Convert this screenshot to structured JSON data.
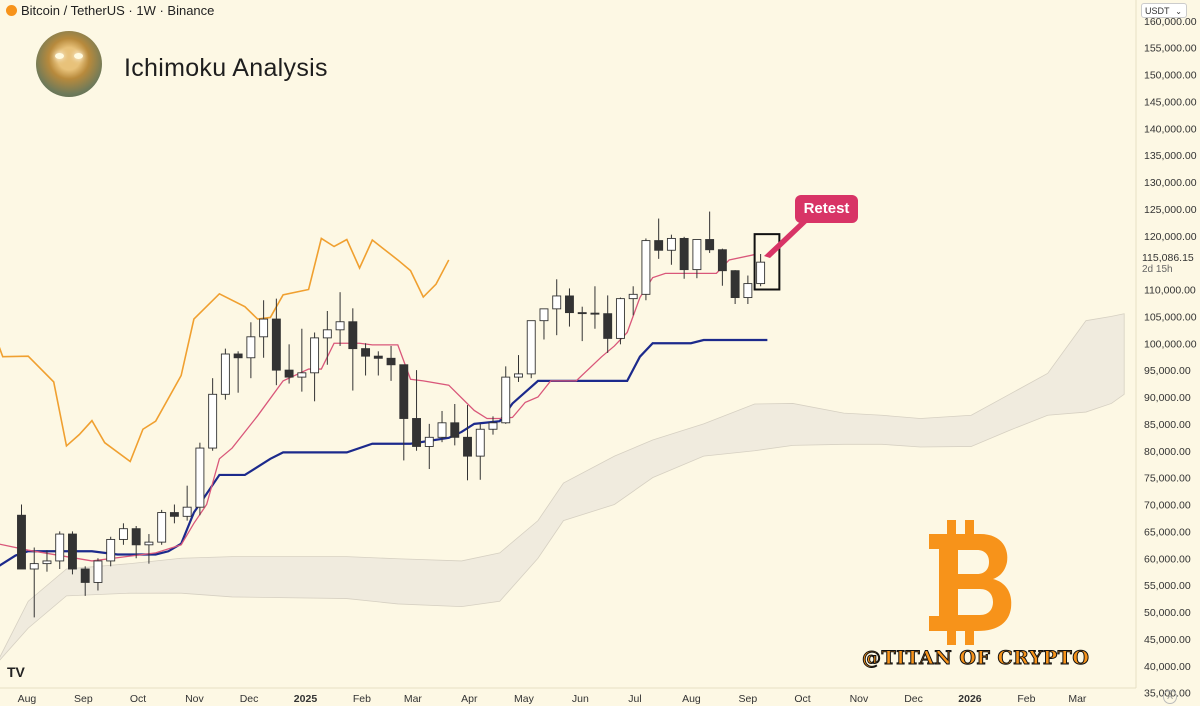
{
  "header": {
    "symbol_title": "Bitcoin / TetherUS · 1W · Binance"
  },
  "overlay": {
    "title": "Ichimoku Analysis",
    "annotation": "Retest",
    "watermark": "@TITAN OF CRYPTO",
    "tv_logo": "TV"
  },
  "currency_selector": {
    "value": "USDT"
  },
  "current_price": {
    "value": "115,086.15",
    "countdown": "2d 15h"
  },
  "colors": {
    "background": "#fdf8e4",
    "tenkan": "#d9577a",
    "kijun": "#1c2a8c",
    "chikou": "#f0a030",
    "cloud": "#ebe7dc",
    "bear_candle": "#333333",
    "bull_candle": "#ffffff",
    "annotation": "#d83466",
    "bitcoin_logo": "#f7931a"
  },
  "icons": {
    "logo": "bitcoin-logo-icon",
    "dropdown": "chevron-down-icon"
  },
  "chart_data": {
    "type": "candlestick",
    "y_axis": {
      "ticks": [
        "160,000.00",
        "155,000.00",
        "150,000.00",
        "145,000.00",
        "140,000.00",
        "135,000.00",
        "130,000.00",
        "125,000.00",
        "120,000.00",
        "115,086.15",
        "110,000.00",
        "105,000.00",
        "100,000.00",
        "95,000.00",
        "90,000.00",
        "85,000.00",
        "80,000.00",
        "75,000.00",
        "70,000.00",
        "65,000.00",
        "60,000.00",
        "55,000.00",
        "50,000.00",
        "45,000.00",
        "40,000.00",
        "35,000.00"
      ],
      "range": [
        34000,
        162000
      ]
    },
    "x_axis": {
      "ticks": [
        "Aug",
        "Sep",
        "Oct",
        "Nov",
        "Dec",
        "2025",
        "Feb",
        "Mar",
        "Apr",
        "May",
        "Jun",
        "Jul",
        "Aug",
        "Sep",
        "Oct",
        "Nov",
        "Dec",
        "2026",
        "Feb",
        "Mar"
      ],
      "range": [
        "2024-07-15",
        "2026-03-31"
      ]
    },
    "candles": [
      [
        "2024-07-29",
        68000,
        70000,
        58000,
        58000
      ],
      [
        "2024-08-05",
        58000,
        62000,
        49000,
        59000
      ],
      [
        "2024-08-12",
        59000,
        61500,
        57500,
        59500
      ],
      [
        "2024-08-19",
        59500,
        65000,
        58000,
        64500
      ],
      [
        "2024-08-26",
        64500,
        65000,
        57000,
        58000
      ],
      [
        "2024-09-02",
        58000,
        58500,
        53000,
        55500
      ],
      [
        "2024-09-09",
        55500,
        60000,
        54000,
        59500
      ],
      [
        "2024-09-16",
        59500,
        64000,
        58500,
        63500
      ],
      [
        "2024-09-23",
        63500,
        66500,
        62500,
        65500
      ],
      [
        "2024-09-30",
        65500,
        66000,
        60000,
        62500
      ],
      [
        "2024-10-07",
        62500,
        64500,
        59000,
        63000
      ],
      [
        "2024-10-14",
        63000,
        69000,
        62500,
        68500
      ],
      [
        "2024-10-21",
        68500,
        70000,
        66500,
        67800
      ],
      [
        "2024-10-28",
        67800,
        73500,
        67000,
        69500
      ],
      [
        "2024-11-04",
        69500,
        81500,
        68000,
        80500
      ],
      [
        "2024-11-11",
        80500,
        93500,
        80000,
        90500
      ],
      [
        "2024-11-18",
        90500,
        99000,
        89500,
        98000
      ],
      [
        "2024-11-25",
        98000,
        98500,
        90800,
        97300
      ],
      [
        "2024-12-02",
        97300,
        103900,
        93500,
        101200
      ],
      [
        "2024-12-09",
        101200,
        108000,
        97300,
        104500
      ],
      [
        "2024-12-16",
        104500,
        108300,
        92200,
        95000
      ],
      [
        "2024-12-23",
        95000,
        99800,
        92500,
        93700
      ],
      [
        "2024-12-30",
        93700,
        102700,
        91000,
        94500
      ],
      [
        "2025-01-06",
        94500,
        102000,
        89200,
        101000
      ],
      [
        "2025-01-13",
        101000,
        106000,
        96000,
        102500
      ],
      [
        "2025-01-20",
        102500,
        109500,
        99500,
        104000
      ],
      [
        "2025-01-27",
        104000,
        106500,
        91200,
        99000
      ],
      [
        "2025-02-03",
        99000,
        100000,
        94000,
        97600
      ],
      [
        "2025-02-10",
        97600,
        98500,
        94000,
        97200
      ],
      [
        "2025-02-17",
        97200,
        99500,
        93000,
        96000
      ],
      [
        "2025-02-24",
        96000,
        96000,
        78200,
        86000
      ],
      [
        "2025-03-03",
        86000,
        95000,
        80000,
        80800
      ],
      [
        "2025-03-10",
        80800,
        85000,
        76600,
        82500
      ],
      [
        "2025-03-17",
        82500,
        87400,
        81600,
        85200
      ],
      [
        "2025-03-24",
        85200,
        88700,
        81000,
        82500
      ],
      [
        "2025-03-31",
        82500,
        88500,
        74500,
        79000
      ],
      [
        "2025-04-07",
        79000,
        85000,
        74600,
        84000
      ],
      [
        "2025-04-14",
        84000,
        86400,
        83000,
        85200
      ],
      [
        "2025-04-21",
        85200,
        95700,
        85000,
        93700
      ],
      [
        "2025-04-28",
        93700,
        97800,
        92800,
        94300
      ],
      [
        "2025-05-05",
        94300,
        104000,
        93500,
        104200
      ],
      [
        "2025-05-12",
        104200,
        105700,
        100700,
        106400
      ],
      [
        "2025-05-19",
        106400,
        111900,
        101500,
        108800
      ],
      [
        "2025-05-26",
        108800,
        110200,
        103100,
        105700
      ],
      [
        "2025-06-02",
        105700,
        106800,
        100400,
        105600
      ],
      [
        "2025-06-09",
        105600,
        110600,
        102700,
        105500
      ],
      [
        "2025-06-16",
        105500,
        108900,
        98200,
        100900
      ],
      [
        "2025-06-23",
        100900,
        108500,
        99800,
        108300
      ],
      [
        "2025-06-30",
        108300,
        110600,
        105200,
        109100
      ],
      [
        "2025-07-07",
        109100,
        119500,
        108000,
        119100
      ],
      [
        "2025-07-14",
        119100,
        123200,
        115700,
        117300
      ],
      [
        "2025-07-21",
        117300,
        120200,
        114600,
        119500
      ],
      [
        "2025-07-28",
        119500,
        119800,
        112000,
        113700
      ],
      [
        "2025-08-04",
        113700,
        119300,
        112100,
        119300
      ],
      [
        "2025-08-11",
        119300,
        124500,
        116800,
        117400
      ],
      [
        "2025-08-18",
        117400,
        117600,
        110700,
        113500
      ],
      [
        "2025-08-25",
        113500,
        113600,
        107300,
        108500
      ],
      [
        "2025-09-01",
        108500,
        112600,
        107300,
        111100
      ],
      [
        "2025-09-08",
        111100,
        116600,
        110600,
        115086
      ]
    ],
    "tenkan_sen": [
      [
        "2024-07-15",
        63000
      ],
      [
        "2024-08-05",
        61500
      ],
      [
        "2024-09-09",
        59500
      ],
      [
        "2024-10-14",
        61000
      ],
      [
        "2024-10-28",
        62500
      ],
      [
        "2024-11-04",
        66500
      ],
      [
        "2024-11-11",
        70000
      ],
      [
        "2024-11-18",
        78500
      ],
      [
        "2024-11-25",
        80500
      ],
      [
        "2024-12-09",
        86500
      ],
      [
        "2024-12-23",
        93000
      ],
      [
        "2025-01-06",
        95200
      ],
      [
        "2025-01-13",
        95200
      ],
      [
        "2025-01-20",
        100000
      ],
      [
        "2025-02-03",
        100000
      ],
      [
        "2025-02-10",
        99700
      ],
      [
        "2025-02-24",
        99700
      ],
      [
        "2025-03-03",
        93300
      ],
      [
        "2025-03-10",
        93000
      ],
      [
        "2025-03-24",
        92200
      ],
      [
        "2025-04-07",
        87500
      ],
      [
        "2025-04-14",
        86000
      ],
      [
        "2025-04-21",
        86000
      ],
      [
        "2025-04-28",
        86200
      ],
      [
        "2025-05-05",
        89000
      ],
      [
        "2025-05-12",
        90000
      ],
      [
        "2025-05-19",
        93000
      ],
      [
        "2025-06-02",
        93000
      ],
      [
        "2025-06-16",
        97500
      ],
      [
        "2025-06-23",
        99500
      ],
      [
        "2025-06-30",
        102000
      ],
      [
        "2025-07-07",
        108500
      ],
      [
        "2025-07-14",
        112200
      ],
      [
        "2025-07-21",
        113000
      ],
      [
        "2025-08-18",
        113000
      ],
      [
        "2025-08-25",
        115500
      ],
      [
        "2025-09-08",
        116500
      ]
    ],
    "kijun_sen": [
      [
        "2024-07-15",
        57500
      ],
      [
        "2024-07-29",
        60500
      ],
      [
        "2024-08-05",
        61300
      ],
      [
        "2024-09-09",
        61300
      ],
      [
        "2024-09-23",
        60700
      ],
      [
        "2024-10-14",
        60700
      ],
      [
        "2024-10-21",
        61300
      ],
      [
        "2024-10-28",
        62700
      ],
      [
        "2024-11-04",
        68500
      ],
      [
        "2024-11-18",
        75500
      ],
      [
        "2024-12-02",
        75500
      ],
      [
        "2024-12-16",
        78500
      ],
      [
        "2024-12-23",
        79700
      ],
      [
        "2025-01-27",
        79700
      ],
      [
        "2025-02-10",
        81300
      ],
      [
        "2025-03-03",
        81300
      ],
      [
        "2025-03-24",
        82400
      ],
      [
        "2025-03-31",
        83500
      ],
      [
        "2025-04-07",
        85000
      ],
      [
        "2025-04-21",
        85500
      ],
      [
        "2025-04-28",
        88800
      ],
      [
        "2025-05-12",
        93000
      ],
      [
        "2025-06-02",
        93000
      ],
      [
        "2025-06-30",
        93000
      ],
      [
        "2025-07-07",
        97500
      ],
      [
        "2025-07-14",
        100000
      ],
      [
        "2025-08-04",
        100000
      ],
      [
        "2025-08-11",
        100600
      ],
      [
        "2025-09-15",
        100600
      ]
    ],
    "chikou_span": [
      [
        "2024-07-15",
        104000
      ],
      [
        "2024-07-22",
        97500
      ],
      [
        "2024-08-05",
        97600
      ],
      [
        "2024-08-19",
        92800
      ],
      [
        "2024-08-26",
        80900
      ],
      [
        "2024-09-02",
        83000
      ],
      [
        "2024-09-09",
        85600
      ],
      [
        "2024-09-16",
        81500
      ],
      [
        "2024-09-30",
        78000
      ],
      [
        "2024-10-07",
        84000
      ],
      [
        "2024-10-14",
        85500
      ],
      [
        "2024-10-28",
        94000
      ],
      [
        "2024-11-04",
        104500
      ],
      [
        "2024-11-18",
        109200
      ],
      [
        "2024-12-02",
        106800
      ],
      [
        "2024-12-09",
        104500
      ],
      [
        "2024-12-16",
        104800
      ],
      [
        "2024-12-23",
        109000
      ],
      [
        "2025-01-06",
        110000
      ],
      [
        "2025-01-13",
        119500
      ],
      [
        "2025-01-20",
        118000
      ],
      [
        "2025-01-27",
        119300
      ],
      [
        "2025-02-03",
        114000
      ],
      [
        "2025-02-10",
        119200
      ],
      [
        "2025-02-24",
        115500
      ],
      [
        "2025-03-03",
        113500
      ],
      [
        "2025-03-10",
        108600
      ],
      [
        "2025-03-17",
        111000
      ],
      [
        "2025-03-24",
        115500
      ]
    ],
    "cloud": [
      [
        "2024-07-15",
        38000,
        39000
      ],
      [
        "2024-08-05",
        52000,
        47000
      ],
      [
        "2024-08-26",
        58000,
        53000
      ],
      [
        "2024-09-30",
        59000,
        53500
      ],
      [
        "2024-10-28",
        60000,
        53500
      ],
      [
        "2024-11-25",
        60300,
        52800
      ],
      [
        "2025-01-27",
        60300,
        52500
      ],
      [
        "2025-02-24",
        59900,
        51500
      ],
      [
        "2025-03-31",
        59500,
        51000
      ],
      [
        "2025-04-21",
        61000,
        52000
      ],
      [
        "2025-05-12",
        67000,
        60000
      ],
      [
        "2025-05-26",
        74000,
        67000
      ],
      [
        "2025-06-23",
        79000,
        70000
      ],
      [
        "2025-07-14",
        82000,
        75000
      ],
      [
        "2025-08-11",
        85000,
        79000
      ],
      [
        "2025-09-08",
        88700,
        80000
      ],
      [
        "2025-09-29",
        88800,
        81000
      ],
      [
        "2025-10-27",
        87000,
        81200
      ],
      [
        "2025-11-17",
        86600,
        81200
      ],
      [
        "2025-12-08",
        86000,
        80700
      ],
      [
        "2026-01-05",
        86600,
        80800
      ],
      [
        "2026-01-26",
        90500,
        83800
      ],
      [
        "2026-02-16",
        94400,
        86600
      ],
      [
        "2026-03-09",
        104200,
        87200
      ],
      [
        "2026-03-23",
        105000,
        88800
      ],
      [
        "2026-03-30",
        105500,
        90500
      ]
    ],
    "annotation_box": {
      "start": "2025-09-08",
      "end": "2025-09-15",
      "low": 110000,
      "high": 120300
    }
  }
}
